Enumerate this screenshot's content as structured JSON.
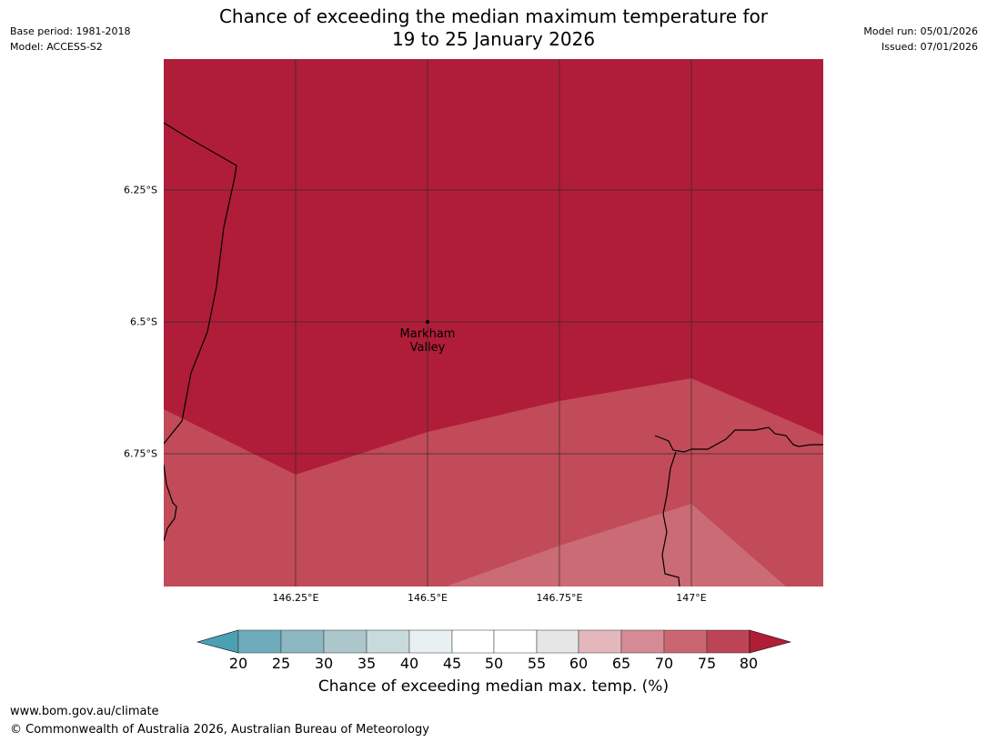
{
  "header": {
    "base_period": "Base period: 1981-2018",
    "model": "Model: ACCESS-S2",
    "title_line1": "Chance of exceeding the median maximum temperature for",
    "title_line2": "19 to 25 January 2026",
    "model_run": "Model run: 05/01/2026",
    "issued": "Issued: 07/01/2026"
  },
  "map": {
    "place_label_line1": "Markham",
    "place_label_line2": "Valley",
    "lat_labels": [
      "6.25°S",
      "6.5°S",
      "6.75°S"
    ],
    "lon_labels": [
      "146.25°E",
      "146.5°E",
      "146.75°E",
      "147°E"
    ],
    "zones": [
      {
        "name": "75-80+",
        "color": "#b01d39"
      },
      {
        "name": "70-75",
        "color": "#c14b58"
      },
      {
        "name": "65-70",
        "color": "#cb6b75"
      }
    ]
  },
  "colorbar": {
    "ticks": [
      "20",
      "25",
      "30",
      "35",
      "40",
      "45",
      "50",
      "55",
      "60",
      "65",
      "70",
      "75",
      "80"
    ],
    "colors": [
      "#4ca0b3",
      "#6eacbb",
      "#8db8c3",
      "#abc7cc",
      "#c9dadc",
      "#e9f0f1",
      "#ffffff",
      "#ffffff",
      "#e6e6e6",
      "#e3b7bb",
      "#d68a94",
      "#c96672",
      "#bd4356",
      "#b01d39"
    ],
    "label": "Chance of exceeding median max. temp. (%)"
  },
  "footer": {
    "url": "www.bom.gov.au/climate",
    "copyright": "© Commonwealth of Australia 2026, Australian Bureau of Meteorology"
  }
}
